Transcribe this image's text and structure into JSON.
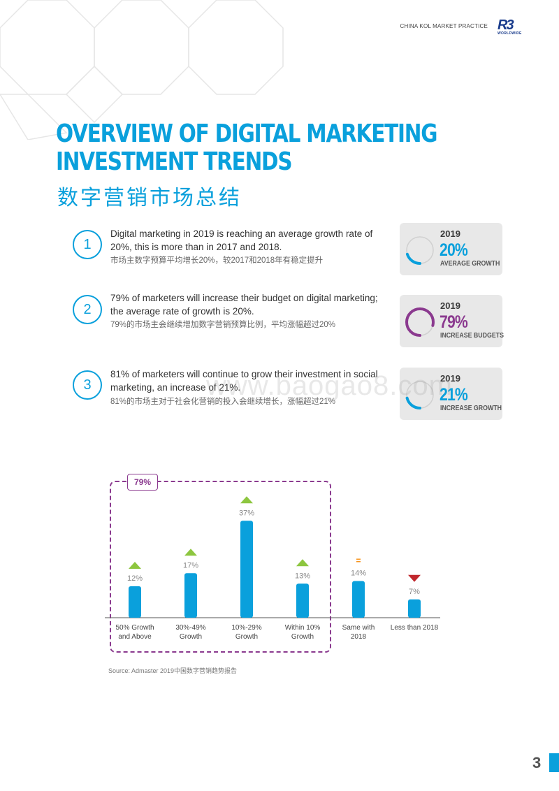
{
  "header": {
    "section": "CHINA KOL MARKET PRACTICE",
    "logo_text": "R3",
    "logo_sub": "WORLDWIDE"
  },
  "title": {
    "line1": "OVERVIEW OF DIGITAL MARKETING",
    "line2": "INVESTMENT TRENDS",
    "zh": "数字营销市场总结"
  },
  "items": [
    {
      "number": "1",
      "en": "Digital marketing in 2019 is reaching an average growth rate of 20%, this is more than in 2017 and 2018.",
      "zh": "市场主数字预算平均增长20%，较2017和2018年有稳定提升",
      "stat": {
        "year": "2019",
        "value": "20%",
        "label": "AVERAGE GROWTH",
        "fraction": 0.2,
        "color": "#0aa0dc"
      }
    },
    {
      "number": "2",
      "en": "79% of marketers will increase their budget on digital marketing; the average rate of growth is 20%.",
      "zh": "79%的市场主会继续增加数字营销预算比例，平均涨幅超过20%",
      "stat": {
        "year": "2019",
        "value": "79%",
        "label": "INCREASE BUDGETS",
        "fraction": 0.79,
        "color": "#8b3a8f"
      }
    },
    {
      "number": "3",
      "en": "81% of marketers will continue to grow their investment in social marketing, an increase of 21%.",
      "zh": "81%的市场主对于社会化营销的投入会继续增长，涨幅超过21%",
      "stat": {
        "year": "2019",
        "value": "21%",
        "label": "INCREASE GROWTH",
        "fraction": 0.21,
        "color": "#0aa0dc"
      }
    }
  ],
  "chart_badge": "79%",
  "chart_data": {
    "type": "bar",
    "categories": [
      "50% Growth\nand Above",
      "30%-49%\nGrowth",
      "10%-29%\nGrowth",
      "Within 10%\nGrowth",
      "Same with\n2018",
      "Less than 2018"
    ],
    "values": [
      12,
      17,
      37,
      13,
      14,
      7
    ],
    "value_labels": [
      "12%",
      "17%",
      "37%",
      "13%",
      "14%",
      "7%"
    ],
    "markers": [
      "up",
      "up",
      "up",
      "up",
      "equal",
      "down"
    ],
    "marker_colors": {
      "up": "#8dc63f",
      "equal": "#f7941d",
      "down": "#c1272d"
    },
    "bar_color": "#0aa0dc",
    "ylim": [
      0,
      40
    ],
    "highlight_group": [
      0,
      1,
      2,
      3
    ],
    "highlight_color": "#8b3a8f"
  },
  "source": "Source: Admaster 2019中国数字营销趋势报告",
  "page_number": "3",
  "watermark": "www.baogao8.com"
}
